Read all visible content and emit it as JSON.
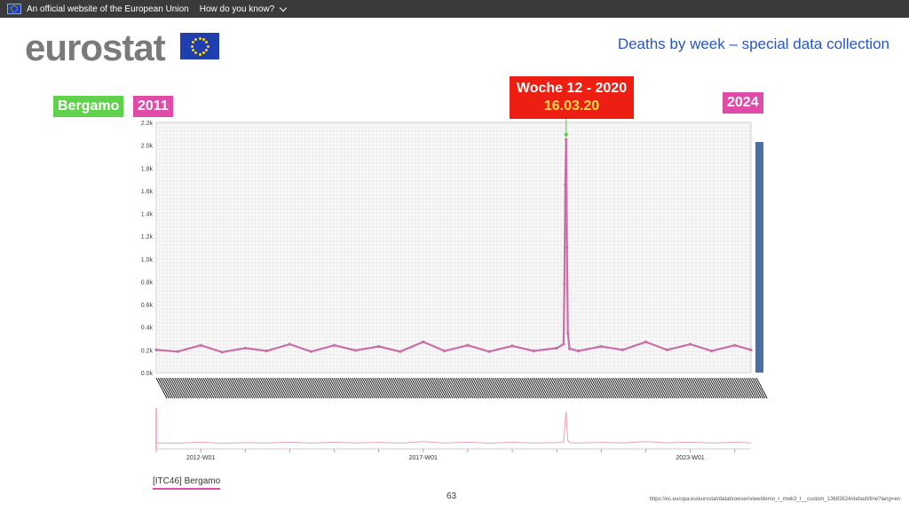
{
  "topbar": {
    "official_text": "An official website of the European Union",
    "how_text": "How do you know?"
  },
  "logo": {
    "text": "eurostat"
  },
  "headline": "Deaths by week – special data collection",
  "tags": {
    "city": "Bergamo",
    "start_year": "2011",
    "end_year": "2024"
  },
  "callout": {
    "line1": "Woche 12 - 2020",
    "line2": "16.03.20"
  },
  "colors": {
    "series": "#c96fa7",
    "grid": "#dadada",
    "accent_green": "#5fd14a",
    "accent_pink": "#e04aa9",
    "callout_red": "#ec1f12",
    "headline_blue": "#2a55c5"
  },
  "chart_data": {
    "type": "line",
    "ylim": [
      0,
      2200
    ],
    "yticks": [
      "0.0k",
      "0.2k",
      "0.4k",
      "0.6k",
      "0.8k",
      "1.0k",
      "1.2k",
      "1.4k",
      "1.6k",
      "1.8k",
      "2.0k",
      "2.2k"
    ],
    "x_tick_labels": [
      "2012-W01",
      "2017-W01",
      "2023-W01"
    ],
    "series": [
      {
        "x": [
          "2011-W01",
          "2011-W26",
          "2012-W01",
          "2012-W26",
          "2013-W01",
          "2013-W26",
          "2014-W01",
          "2014-W26",
          "2015-W01",
          "2015-W26",
          "2016-W01",
          "2016-W26",
          "2017-W01",
          "2017-W26",
          "2018-W01",
          "2018-W26",
          "2019-W01",
          "2019-W26",
          "2020-W01",
          "2020-W09",
          "2020-W10",
          "2020-W11",
          "2020-W12",
          "2020-W13",
          "2020-W14",
          "2020-W16",
          "2020-W26",
          "2021-W01",
          "2021-W26",
          "2022-W01",
          "2022-W26",
          "2023-W01",
          "2023-W26",
          "2024-W01",
          "2024-W20"
        ],
        "values": [
          200,
          185,
          240,
          180,
          215,
          190,
          250,
          185,
          240,
          195,
          230,
          185,
          270,
          190,
          240,
          185,
          235,
          190,
          215,
          250,
          780,
          1650,
          2050,
          1100,
          350,
          210,
          190,
          230,
          200,
          270,
          200,
          250,
          190,
          240,
          200
        ]
      }
    ]
  },
  "region_label": "[ITC46] Bergamo",
  "page_number": "63",
  "source_url": "https://ec.europa.eu/eurostat/databrowser/view/demo_r_mwk3_t__custom_13683824/default/line?lang=en"
}
